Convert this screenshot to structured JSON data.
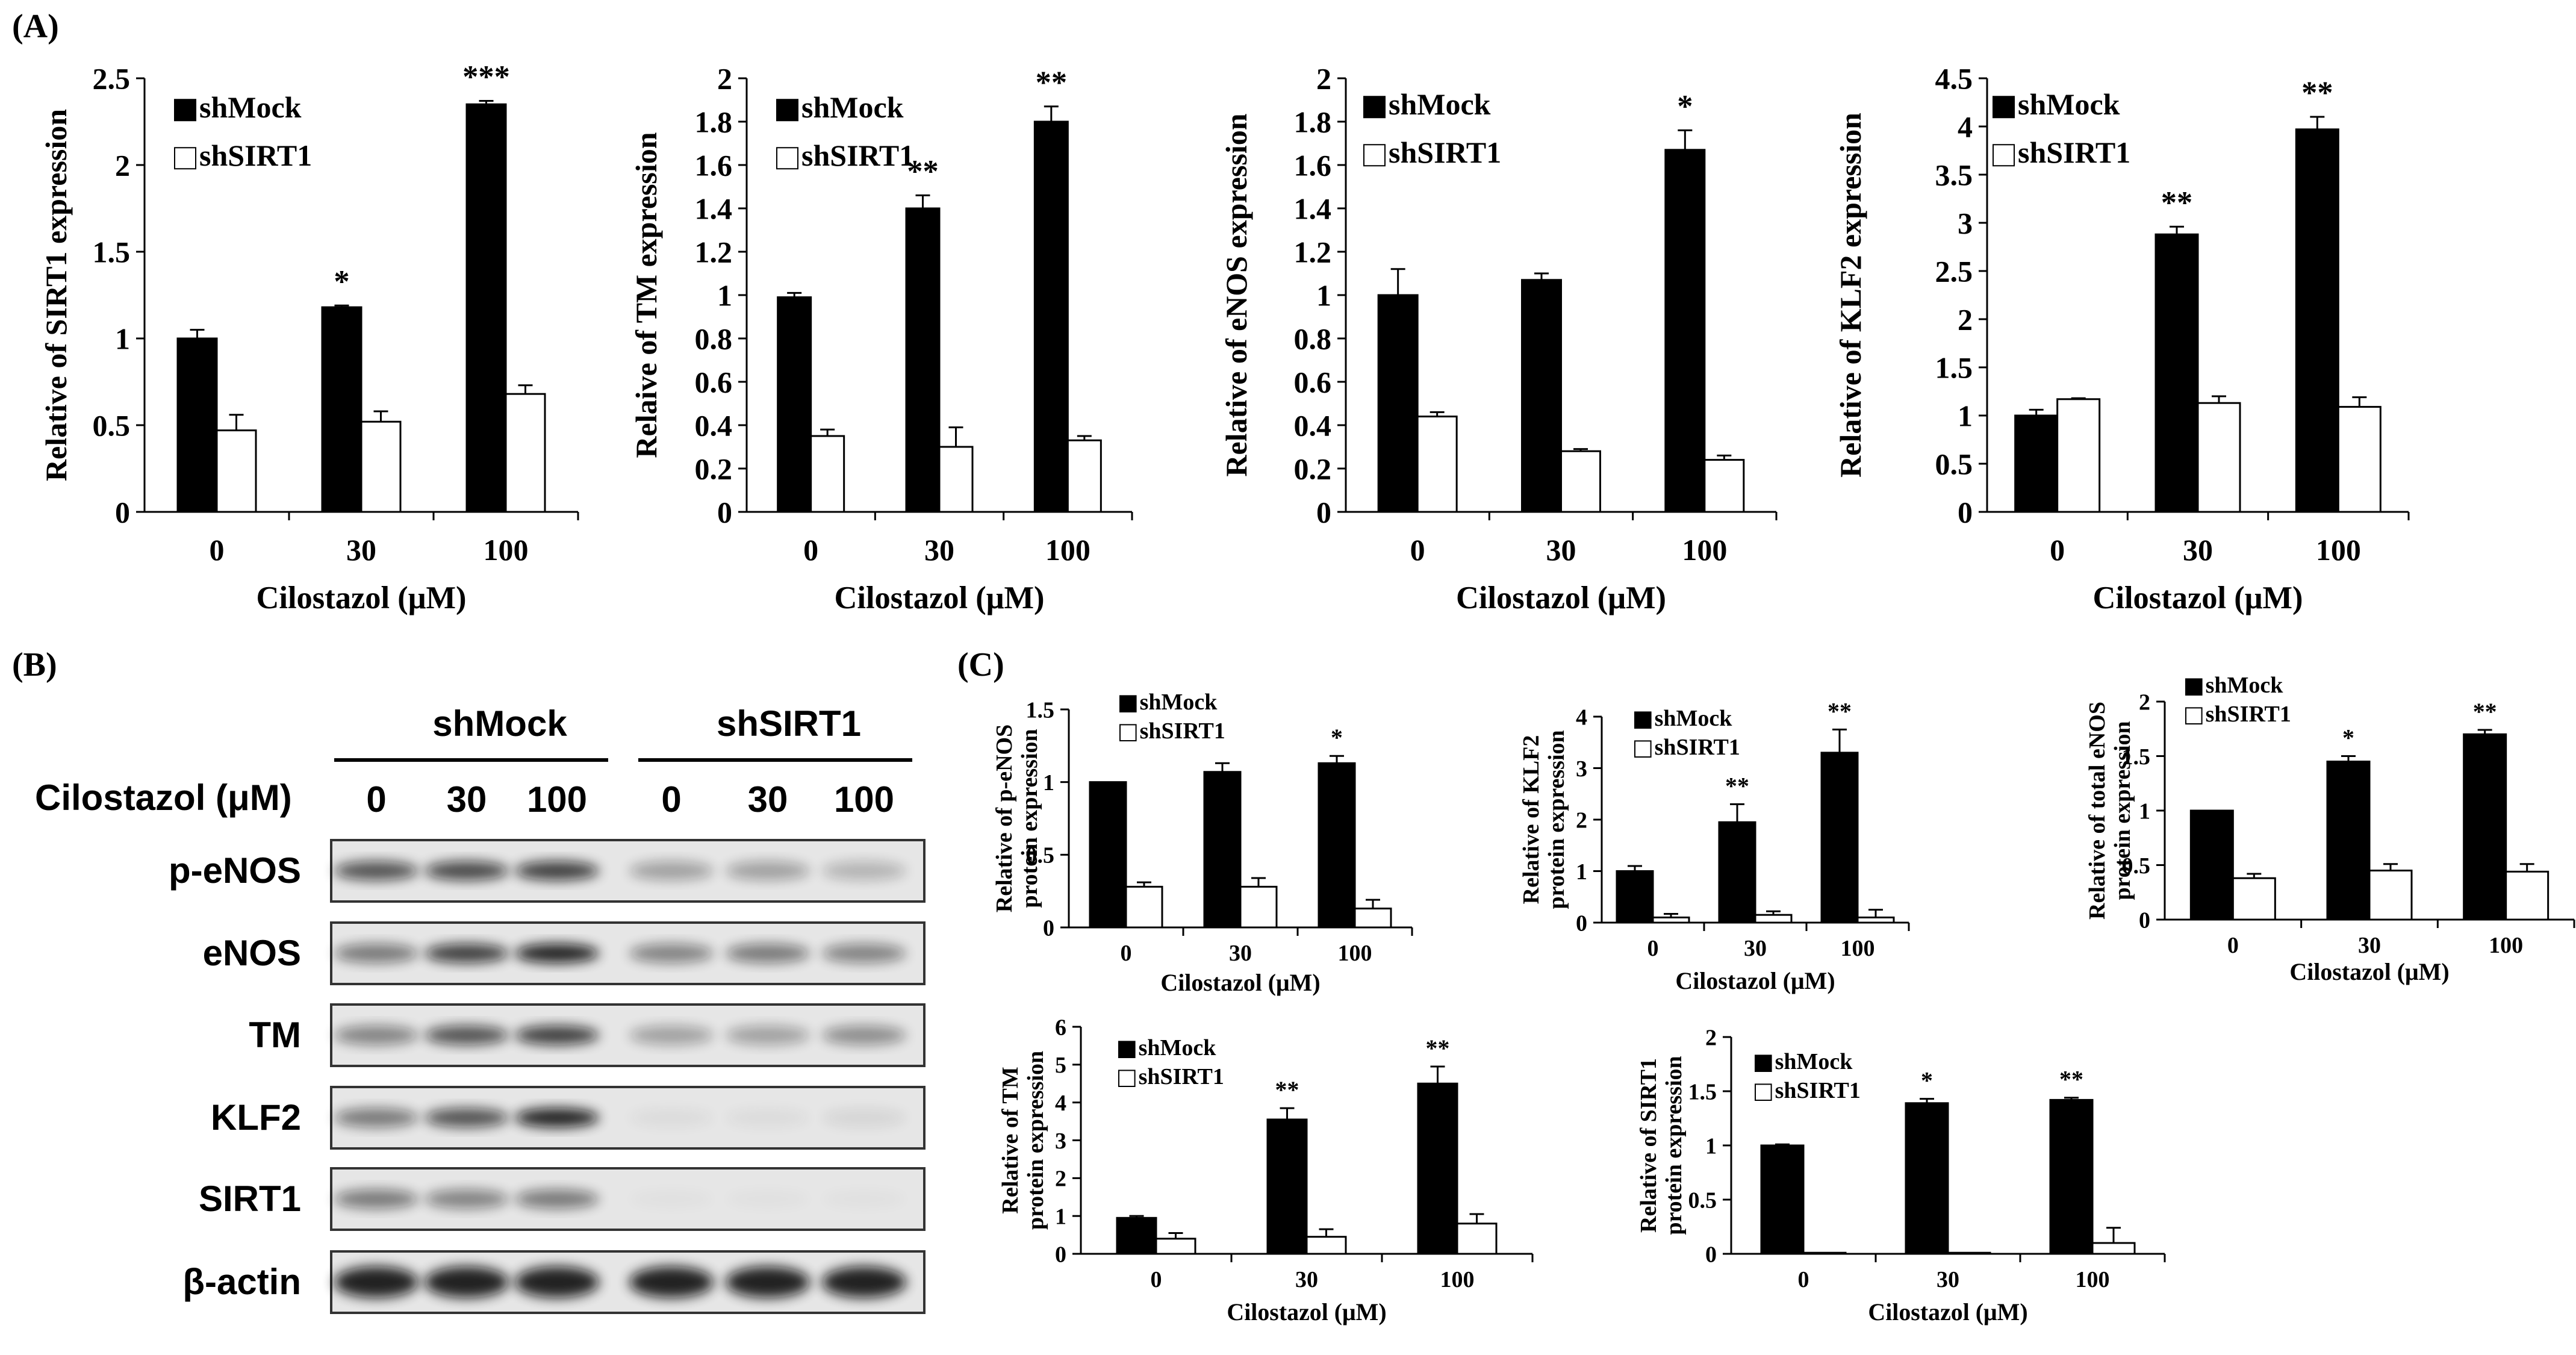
{
  "panel_labels": {
    "a": "(A)",
    "b": "(B)",
    "c": "(C)"
  },
  "legend": {
    "mock": "shMock",
    "sirt": "shSIRT1"
  },
  "colors": {
    "mock": "#000000",
    "sirt": "#ffffff",
    "axis": "#000000"
  },
  "blot": {
    "group_mock": "shMock",
    "group_sirt": "shSIRT1",
    "dose_label": "Cilostazol (μM)",
    "doses": [
      "0",
      "30",
      "100",
      "0",
      "30",
      "100"
    ],
    "rows": [
      "p-eNOS",
      "eNOS",
      "TM",
      "KLF2",
      "SIRT1",
      "β-actin"
    ]
  },
  "chart_data": [
    {
      "id": "a1",
      "type": "bar",
      "categories": [
        "0",
        "30",
        "100"
      ],
      "series": [
        {
          "name": "shMock",
          "values": [
            1.0,
            1.18,
            2.35
          ],
          "errors": [
            0.05,
            0.01,
            0.02
          ]
        },
        {
          "name": "shSIRT1",
          "values": [
            0.47,
            0.52,
            0.68
          ],
          "errors": [
            0.09,
            0.06,
            0.05
          ]
        }
      ],
      "annotations": [
        "",
        "*",
        "***"
      ],
      "xlabel": "Cilostazol (μM)",
      "ylabel": "Relative of SIRT1 expression",
      "ylim": [
        0,
        2.5
      ],
      "yticks": [
        "0",
        "0.5",
        "1",
        "1.5",
        "2",
        "2.5"
      ],
      "legend": "top-left"
    },
    {
      "id": "a2",
      "type": "bar",
      "categories": [
        "0",
        "30",
        "100"
      ],
      "series": [
        {
          "name": "shMock",
          "values": [
            0.99,
            1.4,
            1.8
          ],
          "errors": [
            0.02,
            0.06,
            0.07
          ]
        },
        {
          "name": "shSIRT1",
          "values": [
            0.35,
            0.3,
            0.33
          ],
          "errors": [
            0.03,
            0.09,
            0.02
          ]
        }
      ],
      "annotations": [
        "",
        "**",
        "**"
      ],
      "xlabel": "Cilostazol (μM)",
      "ylabel": "Relaive of TM expression",
      "ylim": [
        0,
        2
      ],
      "yticks": [
        "0",
        "0.2",
        "0.4",
        "0.6",
        "0.8",
        "1",
        "1.2",
        "1.4",
        "1.6",
        "1.8",
        "2"
      ],
      "legend": "top-left"
    },
    {
      "id": "a3",
      "type": "bar",
      "categories": [
        "0",
        "30",
        "100"
      ],
      "series": [
        {
          "name": "shMock",
          "values": [
            1.0,
            1.07,
            1.67
          ],
          "errors": [
            0.12,
            0.03,
            0.09
          ]
        },
        {
          "name": "shSIRT1",
          "values": [
            0.44,
            0.28,
            0.24
          ],
          "errors": [
            0.02,
            0.01,
            0.02
          ]
        }
      ],
      "annotations": [
        "",
        "",
        "*"
      ],
      "xlabel": "Cilostazol (μM)",
      "ylabel": "Relative of eNOS expression",
      "ylim": [
        0,
        2
      ],
      "yticks": [
        "0",
        "0.2",
        "0.4",
        "0.6",
        "0.8",
        "1",
        "1.2",
        "1.4",
        "1.6",
        "1.8",
        "2"
      ],
      "legend": "top-left"
    },
    {
      "id": "a4",
      "type": "bar",
      "categories": [
        "0",
        "30",
        "100"
      ],
      "series": [
        {
          "name": "shMock",
          "values": [
            1.0,
            2.88,
            3.97
          ],
          "errors": [
            0.06,
            0.08,
            0.13
          ]
        },
        {
          "name": "shSIRT1",
          "values": [
            1.17,
            1.13,
            1.09
          ],
          "errors": [
            0.01,
            0.07,
            0.1
          ]
        }
      ],
      "annotations": [
        "",
        "**",
        "**"
      ],
      "xlabel": "Cilostazol (μM)",
      "ylabel": "Relative of KLF2 expression",
      "ylim": [
        0,
        4.5
      ],
      "yticks": [
        "0",
        "0.5",
        "1",
        "1.5",
        "2",
        "2.5",
        "3",
        "3.5",
        "4",
        "4.5"
      ],
      "legend": "top-left"
    },
    {
      "id": "c1",
      "type": "bar",
      "categories": [
        "0",
        "30",
        "100"
      ],
      "series": [
        {
          "name": "shMock",
          "values": [
            1.0,
            1.07,
            1.13
          ],
          "errors": [
            0.0,
            0.06,
            0.05
          ]
        },
        {
          "name": "shSIRT1",
          "values": [
            0.28,
            0.28,
            0.13
          ],
          "errors": [
            0.03,
            0.06,
            0.06
          ]
        }
      ],
      "annotations": [
        "",
        "",
        "*"
      ],
      "xlabel": "Cilostazol (μM)",
      "ylabel": [
        "Relative of p-eNOS",
        "protein expression"
      ],
      "ylim": [
        0,
        1.5
      ],
      "yticks": [
        "0",
        "0.5",
        "1",
        "1.5"
      ],
      "legend": "top-left"
    },
    {
      "id": "c2",
      "type": "bar",
      "categories": [
        "0",
        "30",
        "100"
      ],
      "series": [
        {
          "name": "shMock",
          "values": [
            1.0,
            1.95,
            3.3
          ],
          "errors": [
            0.1,
            0.35,
            0.45
          ]
        },
        {
          "name": "shSIRT1",
          "values": [
            0.1,
            0.15,
            0.1
          ],
          "errors": [
            0.07,
            0.07,
            0.15
          ]
        }
      ],
      "annotations": [
        "",
        "**",
        "**"
      ],
      "xlabel": "Cilostazol (μM)",
      "ylabel": [
        "Relative of KLF2",
        "protein expression"
      ],
      "ylim": [
        0,
        4
      ],
      "yticks": [
        "0",
        "1",
        "2",
        "3",
        "4"
      ],
      "legend": "top-left"
    },
    {
      "id": "c3",
      "type": "bar",
      "categories": [
        "0",
        "30",
        "100"
      ],
      "series": [
        {
          "name": "shMock",
          "values": [
            1.0,
            1.45,
            1.7
          ],
          "errors": [
            0.0,
            0.05,
            0.04
          ]
        },
        {
          "name": "shSIRT1",
          "values": [
            0.38,
            0.45,
            0.44
          ],
          "errors": [
            0.04,
            0.06,
            0.07
          ]
        }
      ],
      "annotations": [
        "",
        "*",
        "**"
      ],
      "xlabel": "Cilostazol (μM)",
      "ylabel": [
        "Relative of total eNOS",
        "protein expression"
      ],
      "ylim": [
        0,
        2
      ],
      "yticks": [
        "0",
        "0.5",
        "1",
        "1.5",
        "2"
      ],
      "legend": "top-left"
    },
    {
      "id": "c4",
      "type": "bar",
      "categories": [
        "0",
        "30",
        "100"
      ],
      "series": [
        {
          "name": "shMock",
          "values": [
            0.95,
            3.55,
            4.5
          ],
          "errors": [
            0.05,
            0.3,
            0.45
          ]
        },
        {
          "name": "shSIRT1",
          "values": [
            0.4,
            0.45,
            0.8
          ],
          "errors": [
            0.15,
            0.2,
            0.25
          ]
        }
      ],
      "annotations": [
        "",
        "**",
        "**"
      ],
      "xlabel": "Cilostazol (μM)",
      "ylabel": [
        "Relative of TM",
        "protein expression"
      ],
      "ylim": [
        0,
        6
      ],
      "yticks": [
        "0",
        "1",
        "2",
        "3",
        "4",
        "5",
        "6"
      ],
      "legend": "top-left"
    },
    {
      "id": "c5",
      "type": "bar",
      "categories": [
        "0",
        "30",
        "100"
      ],
      "series": [
        {
          "name": "shMock",
          "values": [
            1.0,
            1.39,
            1.42
          ],
          "errors": [
            0.01,
            0.04,
            0.02
          ]
        },
        {
          "name": "shSIRT1",
          "values": [
            0.01,
            0.01,
            0.1
          ],
          "errors": [
            0.0,
            0.0,
            0.14
          ]
        }
      ],
      "annotations": [
        "",
        "*",
        "**"
      ],
      "xlabel": "Cilostazol (μM)",
      "ylabel": [
        "Relative of SIRT1",
        "protein expression"
      ],
      "ylim": [
        0,
        2
      ],
      "yticks": [
        "0",
        "0.5",
        "1",
        "1.5",
        "2"
      ],
      "legend": "top-left"
    }
  ]
}
